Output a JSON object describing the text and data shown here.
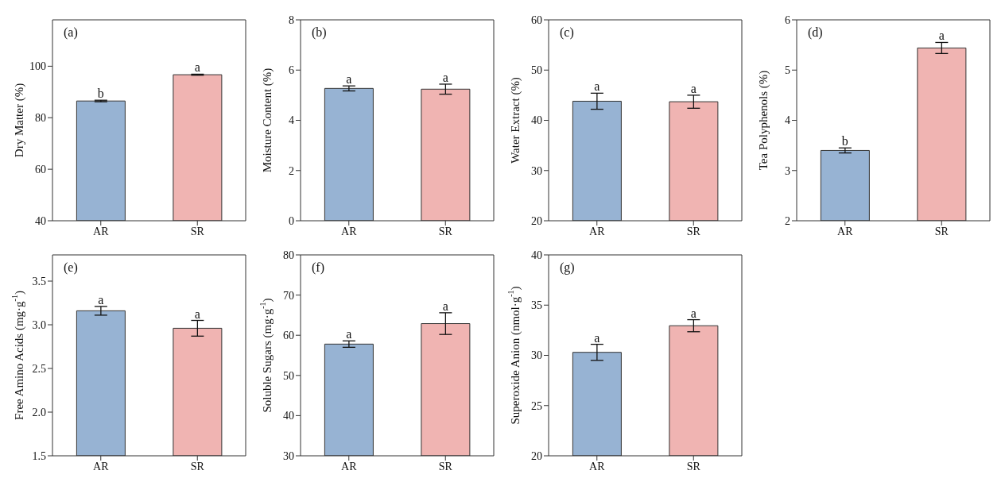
{
  "chart_data": [
    {
      "type": "bar",
      "categories": [
        "AR",
        "SR"
      ],
      "values": [
        86.5,
        96.7
      ],
      "errors": [
        0.3,
        0.2
      ],
      "colors": [
        "#97b3d3",
        "#f0b4b2"
      ],
      "ylabel": "Dry Matter (%)",
      "ylim": [
        40,
        118
      ],
      "yticks": [
        40,
        60,
        80,
        100
      ],
      "annotations": [
        "(a)",
        {
          "text": "b",
          "x": "AR",
          "y": 86.8
        },
        {
          "text": "a",
          "x": "SR",
          "y": 96.9
        }
      ]
    },
    {
      "type": "bar",
      "categories": [
        "AR",
        "SR"
      ],
      "values": [
        5.27,
        5.24
      ],
      "errors": [
        0.1,
        0.2
      ],
      "colors": [
        "#97b3d3",
        "#f0b4b2"
      ],
      "ylabel": "Moisture Content (%)",
      "ylim": [
        0,
        8
      ],
      "yticks": [
        0,
        2,
        4,
        6,
        8
      ],
      "annotations": [
        "(b)",
        {
          "text": "a",
          "x": "AR",
          "y": 5.37
        },
        {
          "text": "a",
          "x": "SR",
          "y": 5.44
        }
      ]
    },
    {
      "type": "bar",
      "categories": [
        "AR",
        "SR"
      ],
      "values": [
        43.8,
        43.7
      ],
      "errors": [
        1.6,
        1.3
      ],
      "colors": [
        "#97b3d3",
        "#f0b4b2"
      ],
      "ylabel": "Water Extract (%)",
      "ylim": [
        20,
        60
      ],
      "yticks": [
        20,
        30,
        40,
        50,
        60
      ],
      "annotations": [
        "(c)",
        {
          "text": "a",
          "x": "AR",
          "y": 45.4
        },
        {
          "text": "a",
          "x": "SR",
          "y": 45.0
        }
      ]
    },
    {
      "type": "bar",
      "categories": [
        "AR",
        "SR"
      ],
      "values": [
        3.4,
        5.44
      ],
      "errors": [
        0.05,
        0.11
      ],
      "colors": [
        "#97b3d3",
        "#f0b4b2"
      ],
      "ylabel": "Tea Polyphenols (%)",
      "ylim": [
        2,
        6
      ],
      "yticks": [
        2,
        3,
        4,
        5,
        6
      ],
      "annotations": [
        "(d)",
        {
          "text": "b",
          "x": "AR",
          "y": 3.45
        },
        {
          "text": "a",
          "x": "SR",
          "y": 5.55
        }
      ]
    },
    {
      "type": "bar",
      "categories": [
        "AR",
        "SR"
      ],
      "values": [
        3.16,
        2.96
      ],
      "errors": [
        0.05,
        0.09
      ],
      "colors": [
        "#97b3d3",
        "#f0b4b2"
      ],
      "ylabel": "Free Amino Acids (mg·g$^{-1}$)",
      "ylim": [
        1.5,
        3.8
      ],
      "yticks": [
        1.5,
        {
          "value": 2,
          "label": "2.0"
        },
        2.5,
        {
          "value": 3,
          "label": "3.0"
        },
        3.5
      ],
      "annotations": [
        "(e)",
        {
          "text": "a",
          "x": "AR",
          "y": 3.21
        },
        {
          "text": "a",
          "x": "SR",
          "y": 3.05
        }
      ]
    },
    {
      "type": "bar",
      "categories": [
        "AR",
        "SR"
      ],
      "values": [
        57.8,
        62.9
      ],
      "errors": [
        0.8,
        2.7
      ],
      "colors": [
        "#97b3d3",
        "#f0b4b2"
      ],
      "ylabel": "Soluble Sugars (mg·g$^{-1}$)",
      "ylim": [
        30,
        80
      ],
      "yticks": [
        30,
        40,
        50,
        60,
        70,
        80
      ],
      "annotations": [
        "(f)",
        {
          "text": "a",
          "x": "AR",
          "y": 58.6
        },
        {
          "text": "a",
          "x": "SR",
          "y": 65.6
        }
      ]
    },
    {
      "type": "bar",
      "categories": [
        "AR",
        "SR"
      ],
      "values": [
        30.3,
        32.95
      ],
      "errors": [
        0.8,
        0.6
      ],
      "colors": [
        "#97b3d3",
        "#f0b4b2"
      ],
      "ylabel": "Superoxide Anion  (nmol·g$^{-1}$)",
      "ylim": [
        20,
        40
      ],
      "yticks": [
        20,
        25,
        30,
        35,
        40
      ],
      "annotations": [
        "(g)",
        {
          "text": "a",
          "x": "AR",
          "y": 31.1
        },
        {
          "text": "a",
          "x": "SR",
          "y": 33.55
        }
      ]
    }
  ]
}
